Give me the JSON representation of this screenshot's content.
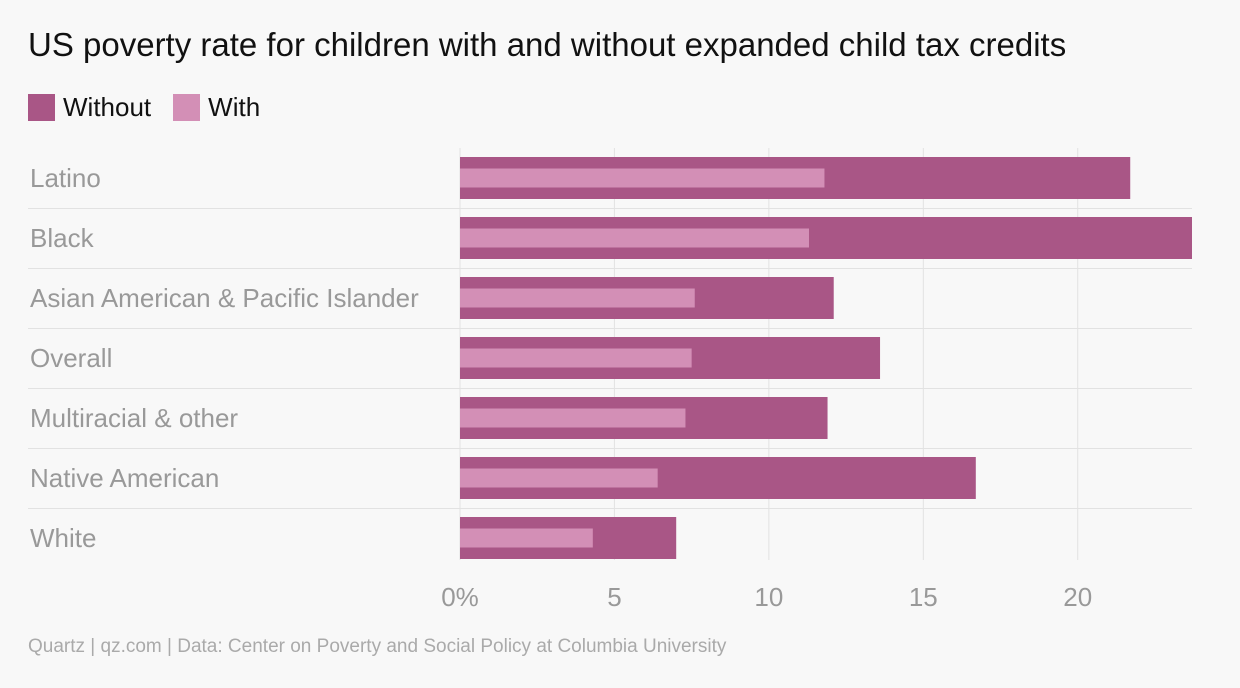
{
  "title": "US poverty rate for children with and without expanded child tax credits",
  "source": "Quartz | qz.com | Data: Center on Poverty and Social Policy at Columbia University",
  "colors": {
    "without": "#a95686",
    "with": "#d38fb6",
    "grid": "#e2e2e2",
    "label": "#999999"
  },
  "chart_data": {
    "type": "bar",
    "orientation": "horizontal",
    "categories": [
      "Latino",
      "Black",
      "Asian American & Pacific Islander",
      "Overall",
      "Multiracial & other",
      "Native American",
      "White"
    ],
    "series": [
      {
        "name": "Without",
        "values": [
          21.7,
          23.7,
          12.1,
          13.6,
          11.9,
          16.7,
          7.0
        ]
      },
      {
        "name": "With",
        "values": [
          11.8,
          11.3,
          7.6,
          7.5,
          7.3,
          6.4,
          4.3
        ]
      }
    ],
    "xlim": [
      0,
      23.7
    ],
    "xticks": [
      0,
      5,
      10,
      15,
      20
    ],
    "xtick_labels": [
      "0%",
      "5",
      "10",
      "15",
      "20"
    ],
    "legend_position": "top-left",
    "grid": true
  }
}
